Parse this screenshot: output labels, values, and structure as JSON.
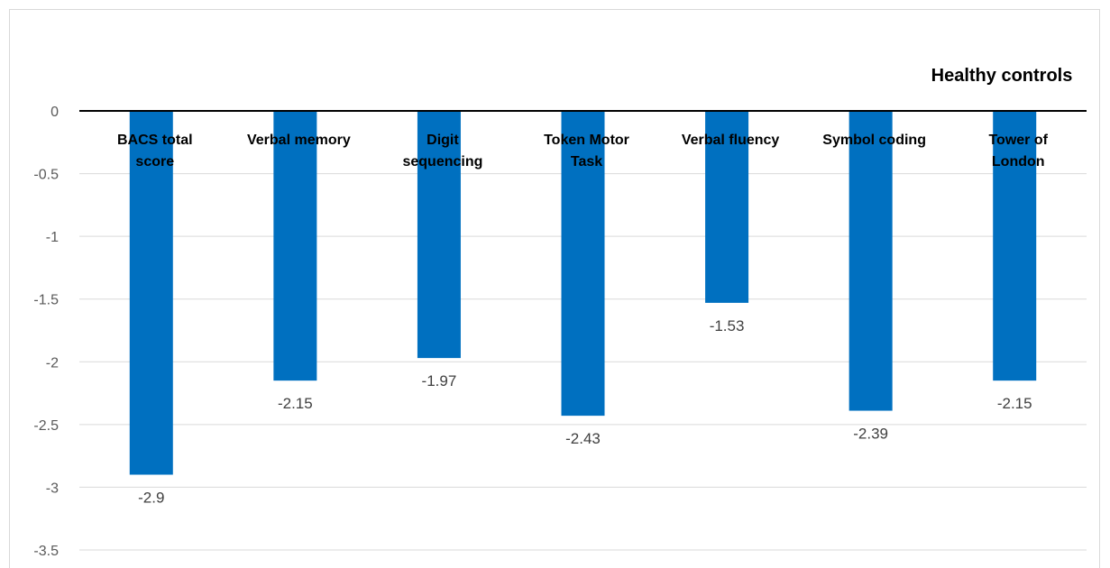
{
  "chart_data": {
    "type": "bar",
    "title": "Healthy controls",
    "categories": [
      [
        "BACS total",
        "score"
      ],
      [
        "Verbal memory"
      ],
      [
        "Digit",
        "sequencing"
      ],
      [
        "Token Motor",
        "Task"
      ],
      [
        "Verbal fluency"
      ],
      [
        "Symbol coding"
      ],
      [
        "Tower of",
        "London"
      ]
    ],
    "values": [
      -2.9,
      -2.15,
      -1.97,
      -2.43,
      -1.53,
      -2.39,
      -2.15
    ],
    "data_labels": [
      "-2.9",
      "-2.15",
      "-1.97",
      "-2.43",
      "-1.53",
      "-2.39",
      "-2.15"
    ],
    "ylim": [
      -3.5,
      0
    ],
    "yticks": [
      0,
      -0.5,
      -1,
      -1.5,
      -2,
      -2.5,
      -3,
      -3.5
    ],
    "ytick_labels": [
      "0",
      "-0.5",
      "-1",
      "-1.5",
      "-2",
      "-2.5",
      "-3",
      "-3.5"
    ],
    "xlabel": "",
    "ylabel": "",
    "grid": true,
    "bar_color": "#0070c0",
    "grid_color": "#d9d9d9",
    "axis_color": "#000000"
  }
}
